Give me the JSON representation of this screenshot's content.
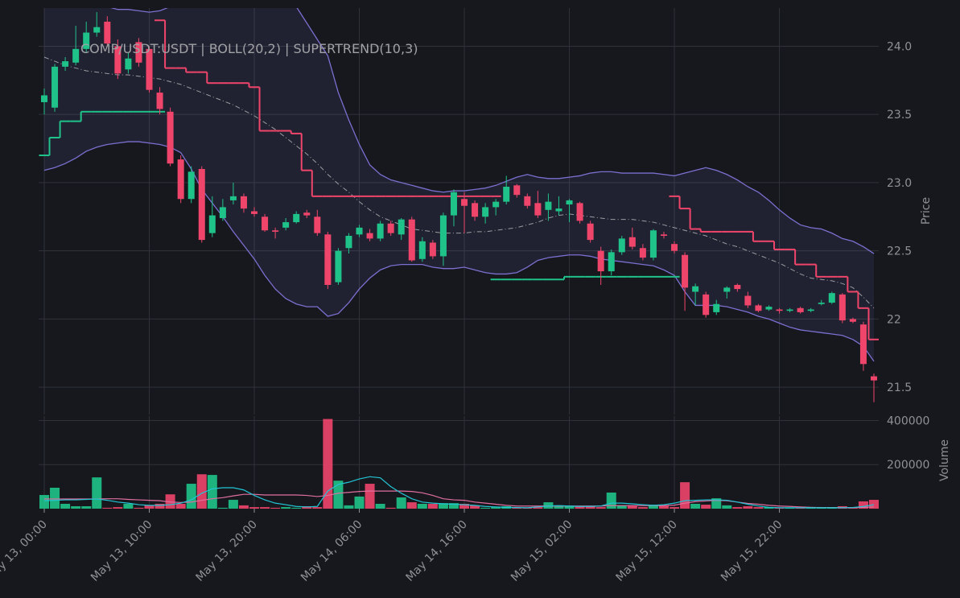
{
  "chart_data": {
    "type": "candlestick",
    "title": "COMP/USDT:USDT | BOLL(20,2) | SUPERTREND(10,3)",
    "y_label": "Price",
    "y2_label": "Volume",
    "x": [
      "May 13, 00:00",
      "May 13, 01:00",
      "May 13, 02:00",
      "May 13, 03:00",
      "May 13, 04:00",
      "May 13, 05:00",
      "May 13, 06:00",
      "May 13, 07:00",
      "May 13, 08:00",
      "May 13, 09:00",
      "May 13, 10:00",
      "May 13, 11:00",
      "May 13, 12:00",
      "May 13, 13:00",
      "May 13, 14:00",
      "May 13, 15:00",
      "May 13, 16:00",
      "May 13, 17:00",
      "May 13, 18:00",
      "May 13, 19:00",
      "May 13, 20:00",
      "May 13, 21:00",
      "May 13, 22:00",
      "May 13, 23:00",
      "May 14, 00:00",
      "May 14, 01:00",
      "May 14, 02:00",
      "May 14, 03:00",
      "May 14, 04:00",
      "May 14, 05:00",
      "May 14, 06:00",
      "May 14, 07:00",
      "May 14, 08:00",
      "May 14, 09:00",
      "May 14, 10:00",
      "May 14, 11:00",
      "May 14, 12:00",
      "May 14, 13:00",
      "May 14, 14:00",
      "May 14, 15:00",
      "May 14, 16:00",
      "May 14, 17:00",
      "May 14, 18:00",
      "May 14, 19:00",
      "May 14, 20:00",
      "May 14, 21:00",
      "May 14, 22:00",
      "May 14, 23:00",
      "May 15, 00:00",
      "May 15, 01:00",
      "May 15, 02:00",
      "May 15, 03:00",
      "May 15, 04:00",
      "May 15, 05:00",
      "May 15, 06:00",
      "May 15, 07:00",
      "May 15, 08:00",
      "May 15, 09:00",
      "May 15, 10:00",
      "May 15, 11:00",
      "May 15, 12:00",
      "May 15, 13:00",
      "May 15, 14:00",
      "May 15, 15:00",
      "May 15, 16:00",
      "May 15, 17:00",
      "May 15, 18:00",
      "May 15, 19:00",
      "May 15, 20:00",
      "May 15, 21:00",
      "May 15, 22:00",
      "May 15, 23:00",
      "May 16, 00:00",
      "May 16, 01:00",
      "May 16, 02:00",
      "May 16, 03:00",
      "May 16, 04:00",
      "May 16, 05:00",
      "May 16, 06:00",
      "May 16, 07:00"
    ],
    "xticks": [
      "May 13, 00:00",
      "May 13, 10:00",
      "May 13, 20:00",
      "May 14, 06:00",
      "May 14, 16:00",
      "May 15, 02:00",
      "May 15, 12:00",
      "May 15, 22:00"
    ],
    "open": [
      23.59,
      23.55,
      23.85,
      23.88,
      23.98,
      24.1,
      24.18,
      24.0,
      23.83,
      24.03,
      23.98,
      23.66,
      23.52,
      23.17,
      22.88,
      23.1,
      22.63,
      22.74,
      22.87,
      22.9,
      22.79,
      22.75,
      22.65,
      22.67,
      22.71,
      22.78,
      22.75,
      22.62,
      22.27,
      22.52,
      22.62,
      22.63,
      22.59,
      22.7,
      22.62,
      22.73,
      22.44,
      22.56,
      22.46,
      22.76,
      22.88,
      22.85,
      22.75,
      22.82,
      22.86,
      22.98,
      22.9,
      22.85,
      22.8,
      22.79,
      22.84,
      22.85,
      22.7,
      22.5,
      22.35,
      22.49,
      22.6,
      22.52,
      22.45,
      22.62,
      22.55,
      22.47,
      22.2,
      22.18,
      22.05,
      22.2,
      22.25,
      22.17,
      22.1,
      22.07,
      22.07,
      22.06,
      22.08,
      22.06,
      22.11,
      22.12,
      22.18,
      22.0,
      21.96,
      21.58
    ],
    "high": [
      23.69,
      23.87,
      23.92,
      24.15,
      24.18,
      24.25,
      24.22,
      24.05,
      23.95,
      24.06,
      24.0,
      23.7,
      23.55,
      23.2,
      23.12,
      23.12,
      22.9,
      22.88,
      23.0,
      22.92,
      22.82,
      22.77,
      22.67,
      22.74,
      22.79,
      22.8,
      22.8,
      22.64,
      22.52,
      22.63,
      22.69,
      22.66,
      22.72,
      22.72,
      22.74,
      22.75,
      22.6,
      22.58,
      22.78,
      22.95,
      22.93,
      22.87,
      22.85,
      22.88,
      23.05,
      22.99,
      22.92,
      22.94,
      22.92,
      22.9,
      22.88,
      22.86,
      22.72,
      22.53,
      22.51,
      22.61,
      22.67,
      22.55,
      22.66,
      22.64,
      22.57,
      22.49,
      22.26,
      22.2,
      22.14,
      22.24,
      22.26,
      22.2,
      22.11,
      22.1,
      22.08,
      22.08,
      22.09,
      22.08,
      22.14,
      22.2,
      22.19,
      22.01,
      21.98,
      21.6
    ],
    "low": [
      23.5,
      23.52,
      23.82,
      23.86,
      23.95,
      24.07,
      24.0,
      23.76,
      23.8,
      23.85,
      23.66,
      23.5,
      23.12,
      22.85,
      22.85,
      22.56,
      22.6,
      22.72,
      22.84,
      22.78,
      22.75,
      22.64,
      22.59,
      22.65,
      22.7,
      22.74,
      22.61,
      22.22,
      22.25,
      22.48,
      22.6,
      22.57,
      22.57,
      22.61,
      22.58,
      22.42,
      22.42,
      22.44,
      22.39,
      22.68,
      22.63,
      22.72,
      22.7,
      22.76,
      22.84,
      22.89,
      22.81,
      22.74,
      22.72,
      22.76,
      22.71,
      22.7,
      22.56,
      22.25,
      22.32,
      22.47,
      22.51,
      22.43,
      22.43,
      22.59,
      22.48,
      22.06,
      22.1,
      22.01,
      22.03,
      22.15,
      22.2,
      22.08,
      22.05,
      22.06,
      22.04,
      22.05,
      22.04,
      22.05,
      22.1,
      22.11,
      21.97,
      21.97,
      21.62,
      21.39
    ],
    "close": [
      23.64,
      23.85,
      23.89,
      23.98,
      24.1,
      24.14,
      24.02,
      23.8,
      23.91,
      23.88,
      23.68,
      23.54,
      23.14,
      22.88,
      23.08,
      22.58,
      22.76,
      22.82,
      22.9,
      22.81,
      22.77,
      22.65,
      22.64,
      22.71,
      22.77,
      22.76,
      22.63,
      22.25,
      22.5,
      22.61,
      22.67,
      22.59,
      22.7,
      22.63,
      22.73,
      22.43,
      22.57,
      22.46,
      22.76,
      22.93,
      22.83,
      22.75,
      22.82,
      22.86,
      22.97,
      22.91,
      22.83,
      22.76,
      22.86,
      22.81,
      22.87,
      22.72,
      22.58,
      22.35,
      22.49,
      22.59,
      22.53,
      22.45,
      22.65,
      22.61,
      22.5,
      22.23,
      22.24,
      22.03,
      22.11,
      22.23,
      22.22,
      22.1,
      22.06,
      22.09,
      22.06,
      22.07,
      22.05,
      22.07,
      22.12,
      22.19,
      21.99,
      21.98,
      21.67,
      21.55
    ],
    "volume": [
      62000,
      95000,
      22000,
      11000,
      11000,
      142000,
      4000,
      7000,
      22000,
      4000,
      15000,
      22000,
      65000,
      22000,
      113000,
      156000,
      153000,
      4000,
      40000,
      15000,
      7000,
      7000,
      4000,
      7000,
      4000,
      11000,
      7000,
      407000,
      127000,
      15000,
      55000,
      113000,
      22000,
      4000,
      51000,
      29000,
      22000,
      22000,
      25000,
      25000,
      22000,
      15000,
      4000,
      7000,
      11000,
      4000,
      4000,
      7000,
      29000,
      15000,
      11000,
      11000,
      11000,
      7000,
      73000,
      15000,
      15000,
      7000,
      18000,
      15000,
      7000,
      120000,
      22000,
      18000,
      47000,
      15000,
      7000,
      11000,
      7000,
      7000,
      4000,
      4000,
      4000,
      7000,
      4000,
      4000,
      11000,
      4000,
      33000,
      40000
    ],
    "bollinger": {
      "upper": [
        24.45,
        24.42,
        24.4,
        24.38,
        24.34,
        24.31,
        24.29,
        24.27,
        24.27,
        24.26,
        24.25,
        24.26,
        24.29,
        24.34,
        24.4,
        24.45,
        24.5,
        24.52,
        24.54,
        24.55,
        24.56,
        24.55,
        24.5,
        24.42,
        24.29,
        24.17,
        24.05,
        23.93,
        23.66,
        23.46,
        23.28,
        23.13,
        23.06,
        23.02,
        23.0,
        22.98,
        22.96,
        22.94,
        22.93,
        22.94,
        22.94,
        22.95,
        22.96,
        22.98,
        23.01,
        23.04,
        23.06,
        23.04,
        23.03,
        23.03,
        23.04,
        23.05,
        23.07,
        23.08,
        23.08,
        23.07,
        23.07,
        23.07,
        23.07,
        23.06,
        23.05,
        23.07,
        23.09,
        23.11,
        23.09,
        23.06,
        23.02,
        22.97,
        22.93,
        22.87,
        22.8,
        22.74,
        22.69,
        22.67,
        22.66,
        22.63,
        22.59,
        22.57,
        22.53,
        22.48
      ],
      "middle": [
        23.92,
        23.89,
        23.86,
        23.84,
        23.82,
        23.81,
        23.8,
        23.79,
        23.79,
        23.78,
        23.77,
        23.76,
        23.74,
        23.72,
        23.69,
        23.66,
        23.63,
        23.6,
        23.57,
        23.53,
        23.49,
        23.44,
        23.39,
        23.33,
        23.27,
        23.21,
        23.14,
        23.06,
        22.99,
        22.93,
        22.86,
        22.8,
        22.75,
        22.72,
        22.69,
        22.66,
        22.65,
        22.64,
        22.63,
        22.63,
        22.63,
        22.64,
        22.64,
        22.65,
        22.66,
        22.67,
        22.69,
        22.71,
        22.74,
        22.76,
        22.77,
        22.76,
        22.75,
        22.74,
        22.73,
        22.73,
        22.73,
        22.72,
        22.71,
        22.69,
        22.67,
        22.65,
        22.63,
        22.61,
        22.58,
        22.55,
        22.53,
        22.5,
        22.47,
        22.44,
        22.41,
        22.37,
        22.33,
        22.3,
        22.29,
        22.28,
        22.26,
        22.23,
        22.16,
        22.08
      ],
      "lower": [
        23.09,
        23.11,
        23.14,
        23.18,
        23.23,
        23.26,
        23.28,
        23.29,
        23.3,
        23.3,
        23.29,
        23.28,
        23.26,
        23.22,
        23.1,
        22.95,
        22.85,
        22.75,
        22.64,
        22.54,
        22.44,
        22.32,
        22.22,
        22.15,
        22.11,
        22.09,
        22.09,
        22.02,
        22.04,
        22.12,
        22.22,
        22.3,
        22.36,
        22.39,
        22.4,
        22.4,
        22.4,
        22.38,
        22.37,
        22.37,
        22.38,
        22.36,
        22.34,
        22.33,
        22.33,
        22.34,
        22.38,
        22.43,
        22.45,
        22.46,
        22.47,
        22.47,
        22.46,
        22.44,
        22.43,
        22.42,
        22.41,
        22.4,
        22.39,
        22.36,
        22.32,
        22.2,
        22.1,
        22.1,
        22.1,
        22.09,
        22.07,
        22.05,
        22.02,
        22.0,
        21.97,
        21.94,
        21.92,
        21.91,
        21.9,
        21.89,
        21.88,
        21.85,
        21.8,
        21.69
      ]
    },
    "supertrend": {
      "up": [
        23.2,
        23.33,
        23.45,
        23.45,
        23.52,
        23.52,
        23.52,
        23.52,
        23.52,
        23.52,
        23.52,
        23.52,
        null,
        null,
        null,
        null,
        null,
        null,
        null,
        null,
        null,
        null,
        null,
        null,
        null,
        null,
        null,
        null,
        null,
        null,
        null,
        null,
        null,
        null,
        null,
        null,
        null,
        null,
        null,
        null,
        null,
        null,
        null,
        22.29,
        22.29,
        22.29,
        22.29,
        22.29,
        22.29,
        22.29,
        22.31,
        22.31,
        22.31,
        22.31,
        22.31,
        22.31,
        22.31,
        22.31,
        22.31,
        22.31,
        22.31,
        null,
        null,
        null,
        null,
        null,
        null,
        null,
        null,
        null,
        null,
        null,
        null,
        null,
        null,
        null,
        null,
        null,
        null,
        null
      ],
      "down": [
        null,
        null,
        null,
        null,
        null,
        null,
        null,
        null,
        null,
        null,
        null,
        24.19,
        23.84,
        23.84,
        23.81,
        23.81,
        23.73,
        23.73,
        23.73,
        23.73,
        23.7,
        23.38,
        23.38,
        23.38,
        23.36,
        23.09,
        22.9,
        22.9,
        22.9,
        22.9,
        22.9,
        22.9,
        22.9,
        22.9,
        22.9,
        22.9,
        22.9,
        22.9,
        22.9,
        22.9,
        22.9,
        22.9,
        22.9,
        22.9,
        null,
        null,
        null,
        null,
        null,
        null,
        null,
        null,
        null,
        null,
        null,
        null,
        null,
        null,
        null,
        null,
        22.9,
        22.81,
        22.66,
        22.64,
        22.64,
        22.64,
        22.64,
        22.64,
        22.57,
        22.57,
        22.51,
        22.51,
        22.4,
        22.4,
        22.31,
        22.31,
        22.31,
        22.2,
        22.08,
        21.85
      ]
    },
    "volume_ma": {
      "fast": [
        36000,
        38000,
        40000,
        40000,
        42000,
        44000,
        38000,
        30000,
        25000,
        18000,
        15000,
        15000,
        18000,
        25000,
        40000,
        70000,
        90000,
        95000,
        95000,
        85000,
        60000,
        40000,
        25000,
        18000,
        10000,
        8000,
        10000,
        80000,
        110000,
        120000,
        135000,
        145000,
        140000,
        100000,
        70000,
        45000,
        30000,
        25000,
        22000,
        20000,
        18000,
        15000,
        10000,
        8000,
        6000,
        5000,
        4000,
        8000,
        12000,
        14000,
        12000,
        10000,
        10000,
        12000,
        25000,
        25000,
        22000,
        18000,
        15000,
        18000,
        25000,
        36000,
        38000,
        40000,
        40000,
        38000,
        30000,
        20000,
        12000,
        6000,
        4000,
        4000,
        4000,
        4000,
        4000,
        4000,
        4000,
        5000,
        10000,
        18000
      ],
      "slow": [
        44000,
        44000,
        44000,
        44000,
        44000,
        44000,
        45000,
        45000,
        42000,
        40000,
        38000,
        36000,
        30000,
        28000,
        30000,
        38000,
        45000,
        50000,
        58000,
        65000,
        65000,
        62000,
        62000,
        62000,
        62000,
        60000,
        55000,
        60000,
        70000,
        74000,
        78000,
        80000,
        80000,
        80000,
        80000,
        78000,
        72000,
        60000,
        45000,
        40000,
        38000,
        30000,
        25000,
        20000,
        15000,
        12000,
        12000,
        12000,
        12000,
        12000,
        12000,
        12000,
        12000,
        12000,
        14000,
        14000,
        14000,
        14000,
        14000,
        14000,
        16000,
        25000,
        32000,
        35000,
        38000,
        36000,
        30000,
        24000,
        20000,
        15000,
        12000,
        10000,
        8000,
        6000,
        5000,
        5000,
        5000,
        5000,
        6000,
        8000
      ]
    },
    "ylim": [
      21.3,
      24.28
    ],
    "yticks": [
      {
        "value": 21.5,
        "label": "21.5"
      },
      22,
      {
        "value": 22.5,
        "label": "22.5"
      },
      {
        "value": 23,
        "label": "23.0"
      },
      {
        "value": 23.5,
        "label": "23.5"
      },
      {
        "value": 24,
        "label": "24.0"
      }
    ],
    "y2lim": [
      0,
      420000
    ],
    "y2ticks": [
      200000,
      400000
    ],
    "grid": true,
    "colors": {
      "up": "#1fc38a",
      "down": "#f0456b",
      "band": "#7b6fd0",
      "band_fill": "#8a80e0",
      "middle": "#9a9ca0",
      "volume_fast": "#22c4d4",
      "volume_slow": "#e06fa0"
    }
  }
}
